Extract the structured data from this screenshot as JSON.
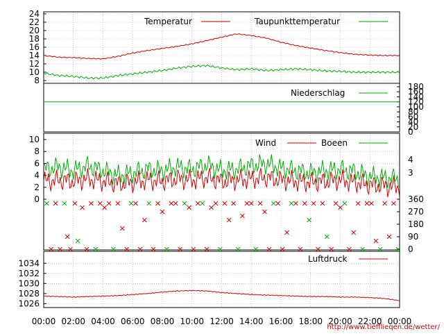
{
  "chart_data": [
    {
      "type": "line",
      "panel": "temperature",
      "ylim": [
        8,
        24
      ],
      "yticks": [
        "8",
        "10",
        "12",
        "14",
        "16",
        "18",
        "20",
        "22",
        "24"
      ],
      "grid": true,
      "legend_placement": "top",
      "x_hours": [
        0,
        1,
        2,
        3,
        4,
        5,
        6,
        7,
        8,
        9,
        10,
        11,
        12,
        13,
        14,
        15,
        16,
        17,
        18,
        19,
        20,
        21,
        22,
        23,
        24
      ],
      "series": [
        {
          "name": "Temperatur",
          "color": "#cc0000",
          "values": [
            14.0,
            13.6,
            13.5,
            13.3,
            13.2,
            13.8,
            14.6,
            15.2,
            15.7,
            16.2,
            16.8,
            17.6,
            18.4,
            19.2,
            18.8,
            18.2,
            17.2,
            16.4,
            15.8,
            15.2,
            14.7,
            14.3,
            14.1,
            14.0,
            14.0
          ]
        },
        {
          "name": "Taupunkttemperatur",
          "color": "#00aa00",
          "values": [
            9.8,
            9.2,
            9.0,
            8.6,
            8.6,
            9.2,
            9.6,
            10.0,
            10.4,
            11.0,
            11.4,
            11.6,
            11.0,
            10.6,
            10.8,
            10.4,
            10.6,
            10.8,
            10.6,
            10.3,
            10.2,
            10.0,
            10.0,
            10.0,
            10.0
          ]
        }
      ]
    },
    {
      "type": "line",
      "panel": "precipitation",
      "ylim": [
        0,
        180
      ],
      "yticks": [
        "0",
        "20",
        "40",
        "60",
        "80",
        "100",
        "120",
        "140",
        "160",
        "180"
      ],
      "series": [
        {
          "name": "Niederschlag",
          "color": "#00aa00",
          "values": [
            120,
            120
          ]
        }
      ],
      "x_hours": [
        0,
        24
      ]
    },
    {
      "type": "line",
      "panel": "wind",
      "ylim": [
        0,
        10
      ],
      "yticks": [
        "0",
        "2",
        "4",
        "6",
        "8",
        "10"
      ],
      "right_labels": [
        "3",
        "4"
      ],
      "grid": true,
      "x_hours": [
        0,
        1,
        2,
        3,
        4,
        5,
        6,
        7,
        8,
        9,
        10,
        11,
        12,
        13,
        14,
        15,
        16,
        17,
        18,
        19,
        20,
        21,
        22,
        23,
        24
      ],
      "series": [
        {
          "name": "Wind",
          "color": "#cc0000",
          "values": [
            3.0,
            3.2,
            3.0,
            3.4,
            3.0,
            2.6,
            2.8,
            3.2,
            3.0,
            3.4,
            3.2,
            3.6,
            3.0,
            3.2,
            3.4,
            3.6,
            3.2,
            3.0,
            2.8,
            3.0,
            3.2,
            2.8,
            2.4,
            2.2,
            2.0
          ]
        },
        {
          "name": "Boeen",
          "color": "#00aa00",
          "values": [
            5.0,
            5.4,
            4.8,
            5.6,
            4.8,
            4.0,
            4.4,
            5.0,
            4.8,
            5.4,
            5.0,
            5.8,
            4.8,
            5.0,
            5.6,
            6.0,
            5.2,
            4.8,
            4.4,
            4.8,
            5.0,
            4.6,
            3.8,
            3.6,
            3.4
          ]
        }
      ]
    },
    {
      "type": "scatter",
      "panel": "wind-direction",
      "ylim": [
        0,
        360
      ],
      "yticks": [
        "0",
        "90",
        "180",
        "270",
        "360"
      ],
      "points": [
        [
          0.2,
          330
        ],
        [
          0.5,
          0
        ],
        [
          0.8,
          330
        ],
        [
          1.1,
          0
        ],
        [
          1.4,
          330
        ],
        [
          1.6,
          90
        ],
        [
          1.8,
          0
        ],
        [
          2.1,
          330
        ],
        [
          2.3,
          60
        ],
        [
          2.6,
          300
        ],
        [
          2.9,
          0
        ],
        [
          3.2,
          330
        ],
        [
          3.5,
          0
        ],
        [
          3.8,
          330
        ],
        [
          4.1,
          300
        ],
        [
          4.4,
          330
        ],
        [
          4.7,
          0
        ],
        [
          5.0,
          330
        ],
        [
          5.3,
          150
        ],
        [
          5.6,
          0
        ],
        [
          5.9,
          330
        ],
        [
          6.2,
          330
        ],
        [
          6.5,
          0
        ],
        [
          6.8,
          210
        ],
        [
          7.1,
          330
        ],
        [
          7.4,
          0
        ],
        [
          7.7,
          330
        ],
        [
          8.0,
          270
        ],
        [
          8.3,
          0
        ],
        [
          8.6,
          330
        ],
        [
          8.9,
          330
        ],
        [
          9.2,
          0
        ],
        [
          9.5,
          330
        ],
        [
          9.8,
          300
        ],
        [
          10.1,
          0
        ],
        [
          10.4,
          330
        ],
        [
          10.7,
          330
        ],
        [
          11.0,
          0
        ],
        [
          11.3,
          300
        ],
        [
          11.6,
          330
        ],
        [
          11.9,
          0
        ],
        [
          12.2,
          330
        ],
        [
          12.5,
          210
        ],
        [
          12.8,
          330
        ],
        [
          13.1,
          0
        ],
        [
          13.4,
          240
        ],
        [
          13.7,
          330
        ],
        [
          14.0,
          330
        ],
        [
          14.3,
          0
        ],
        [
          14.6,
          330
        ],
        [
          14.9,
          270
        ],
        [
          15.2,
          0
        ],
        [
          15.5,
          330
        ],
        [
          15.8,
          330
        ],
        [
          16.1,
          0
        ],
        [
          16.4,
          120
        ],
        [
          16.7,
          330
        ],
        [
          17.0,
          330
        ],
        [
          17.3,
          0
        ],
        [
          17.6,
          330
        ],
        [
          17.9,
          210
        ],
        [
          18.2,
          330
        ],
        [
          18.5,
          0
        ],
        [
          18.8,
          330
        ],
        [
          19.1,
          90
        ],
        [
          19.4,
          0
        ],
        [
          19.7,
          330
        ],
        [
          20.0,
          300
        ],
        [
          20.3,
          330
        ],
        [
          20.6,
          0
        ],
        [
          20.9,
          120
        ],
        [
          21.2,
          330
        ],
        [
          21.5,
          0
        ],
        [
          21.8,
          330
        ],
        [
          22.1,
          330
        ],
        [
          22.4,
          60
        ],
        [
          22.7,
          0
        ],
        [
          23.0,
          330
        ],
        [
          23.3,
          90
        ],
        [
          23.6,
          330
        ],
        [
          23.9,
          0
        ]
      ]
    },
    {
      "type": "line",
      "panel": "pressure",
      "ylim": [
        1025.5,
        1035
      ],
      "yticks": [
        "1026",
        "1028",
        "1030",
        "1032",
        "1034"
      ],
      "grid": true,
      "x_hours": [
        0,
        1,
        2,
        3,
        4,
        5,
        6,
        7,
        8,
        9,
        10,
        11,
        12,
        13,
        14,
        15,
        16,
        17,
        18,
        19,
        20,
        21,
        22,
        23,
        24
      ],
      "series": [
        {
          "name": "Luftdruck",
          "color": "#cc0000",
          "values": [
            1027.5,
            1027.4,
            1027.3,
            1027.4,
            1027.5,
            1027.6,
            1027.8,
            1028.0,
            1028.3,
            1028.5,
            1028.6,
            1028.5,
            1028.2,
            1028.0,
            1027.8,
            1027.7,
            1027.6,
            1027.5,
            1027.4,
            1027.4,
            1027.3,
            1027.3,
            1027.2,
            1027.0,
            1026.6
          ]
        }
      ]
    }
  ],
  "x_axis": {
    "ticks": [
      "00:00",
      "02:00",
      "04:00",
      "06:00",
      "08:00",
      "10:00",
      "12:00",
      "14:00",
      "16:00",
      "18:00",
      "20:00",
      "22:00",
      "00:00"
    ]
  },
  "credit": "http://www.tiefflieqen.de/wetter/"
}
